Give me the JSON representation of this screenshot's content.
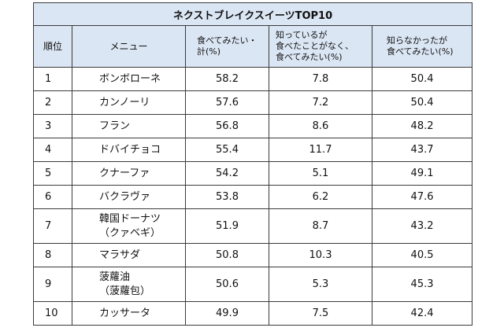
{
  "table": {
    "title": "ネクストブレイクスイーツTOP10",
    "headers": {
      "rank": "順位",
      "menu": "メニュー",
      "want_total": [
        "食べてみたい・",
        "計(%)"
      ],
      "known_never_eaten": [
        "知っているが",
        "食べたことがなく、",
        "食べてみたい(%)"
      ],
      "unknown": [
        "知らなかったが",
        "食べてみたい(%)"
      ]
    },
    "rows": [
      {
        "rank": "1",
        "menu": [
          "ボンボローネ"
        ],
        "want_total": "58.2",
        "known_never_eaten": "7.8",
        "unknown": "50.4"
      },
      {
        "rank": "2",
        "menu": [
          "カンノーリ"
        ],
        "want_total": "57.6",
        "known_never_eaten": "7.2",
        "unknown": "50.4"
      },
      {
        "rank": "3",
        "menu": [
          "フラン"
        ],
        "want_total": "56.8",
        "known_never_eaten": "8.6",
        "unknown": "48.2"
      },
      {
        "rank": "4",
        "menu": [
          "ドバイチョコ"
        ],
        "want_total": "55.4",
        "known_never_eaten": "11.7",
        "unknown": "43.7"
      },
      {
        "rank": "5",
        "menu": [
          "クナーファ"
        ],
        "want_total": "54.2",
        "known_never_eaten": "5.1",
        "unknown": "49.1"
      },
      {
        "rank": "6",
        "menu": [
          "バクラヴァ"
        ],
        "want_total": "53.8",
        "known_never_eaten": "6.2",
        "unknown": "47.6"
      },
      {
        "rank": "7",
        "menu": [
          "韓国ドーナツ",
          "（クァベギ）"
        ],
        "want_total": "51.9",
        "known_never_eaten": "8.7",
        "unknown": "43.2"
      },
      {
        "rank": "8",
        "menu": [
          "マラサダ"
        ],
        "want_total": "50.8",
        "known_never_eaten": "10.3",
        "unknown": "40.5"
      },
      {
        "rank": "9",
        "menu": [
          "菠蘿油",
          "（菠蘿包）"
        ],
        "want_total": "50.6",
        "known_never_eaten": "5.3",
        "unknown": "45.3"
      },
      {
        "rank": "10",
        "menu": [
          "カッサータ"
        ],
        "want_total": "49.9",
        "known_never_eaten": "7.5",
        "unknown": "42.4"
      }
    ]
  },
  "colors": {
    "header_background": "#dbe6f4",
    "border": "#3a3a3a",
    "text": "#111111"
  }
}
